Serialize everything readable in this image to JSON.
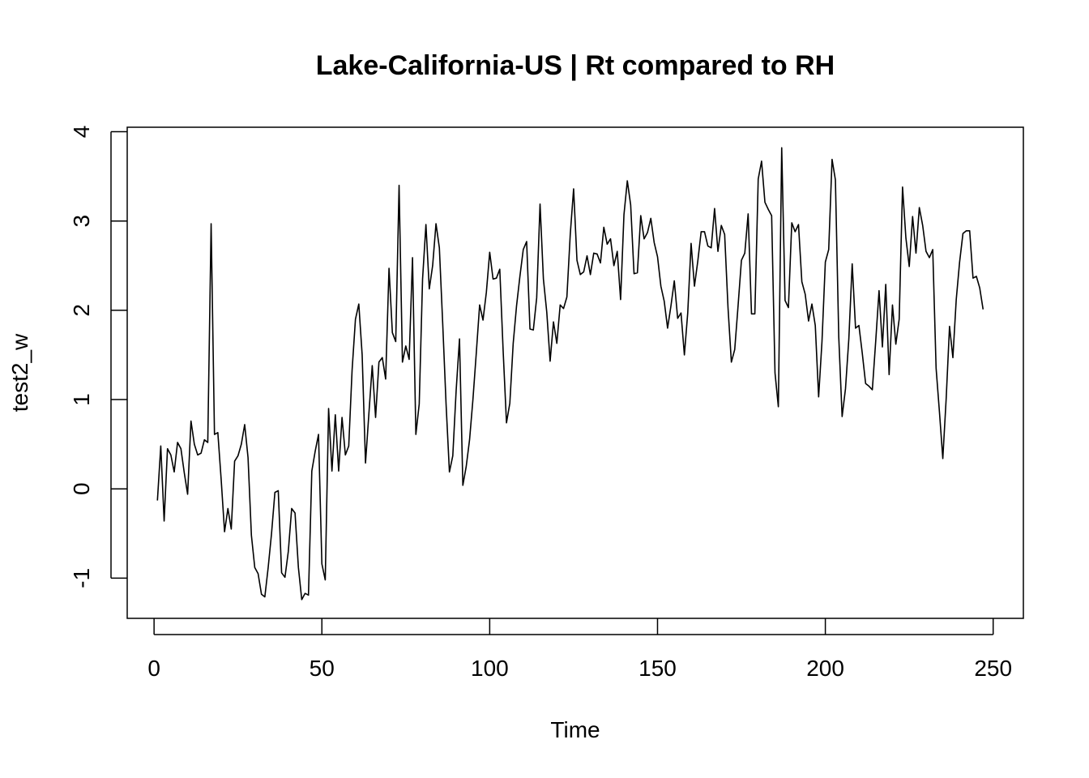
{
  "chart_data": {
    "type": "line",
    "title": "Lake-California-US | Rt compared to RH",
    "xlabel": "Time",
    "ylabel": "test2_w",
    "xlim": [
      -8,
      259
    ],
    "ylim": [
      -1.45,
      4.05
    ],
    "x_ticks": [
      0,
      50,
      100,
      150,
      200,
      250
    ],
    "y_ticks": [
      -1,
      0,
      1,
      2,
      3,
      4
    ],
    "grid": false,
    "legend": "none",
    "line_color": "#000000",
    "x_start": 1,
    "series": [
      {
        "values": [
          -0.13,
          0.48,
          -0.36,
          0.45,
          0.38,
          0.19,
          0.52,
          0.45,
          0.18,
          -0.06,
          0.76,
          0.5,
          0.38,
          0.4,
          0.55,
          0.52,
          2.97,
          0.61,
          0.63,
          0.1,
          -0.48,
          -0.22,
          -0.45,
          0.31,
          0.37,
          0.5,
          0.72,
          0.35,
          -0.52,
          -0.88,
          -0.95,
          -1.18,
          -1.21,
          -0.88,
          -0.5,
          -0.04,
          -0.02,
          -0.94,
          -0.99,
          -0.7,
          -0.22,
          -0.27,
          -0.88,
          -1.24,
          -1.17,
          -1.19,
          0.2,
          0.42,
          0.61,
          -0.84,
          -1.02,
          0.9,
          0.2,
          0.83,
          0.2,
          0.8,
          0.38,
          0.48,
          1.33,
          1.9,
          2.07,
          1.5,
          0.29,
          0.84,
          1.38,
          0.8,
          1.42,
          1.47,
          1.23,
          2.47,
          1.75,
          1.65,
          3.4,
          1.42,
          1.6,
          1.45,
          2.59,
          0.61,
          0.95,
          2.35,
          2.96,
          2.24,
          2.5,
          2.97,
          2.7,
          1.85,
          0.95,
          0.19,
          0.37,
          1.1,
          1.68,
          0.04,
          0.25,
          0.55,
          1.0,
          1.52,
          2.06,
          1.89,
          2.2,
          2.65,
          2.35,
          2.36,
          2.46,
          1.55,
          0.74,
          0.96,
          1.63,
          2.05,
          2.38,
          2.68,
          2.77,
          1.79,
          1.78,
          2.14,
          3.19,
          2.35,
          1.98,
          1.43,
          1.87,
          1.63,
          2.06,
          2.02,
          2.15,
          2.85,
          3.36,
          2.56,
          2.4,
          2.43,
          2.61,
          2.4,
          2.64,
          2.63,
          2.53,
          2.93,
          2.74,
          2.8,
          2.5,
          2.66,
          2.12,
          3.07,
          3.45,
          3.18,
          2.41,
          2.42,
          3.06,
          2.8,
          2.87,
          3.03,
          2.76,
          2.6,
          2.27,
          2.1,
          1.8,
          2.05,
          2.33,
          1.91,
          1.97,
          1.5,
          1.97,
          2.75,
          2.27,
          2.55,
          2.88,
          2.88,
          2.72,
          2.7,
          3.14,
          2.66,
          2.95,
          2.85,
          2.03,
          1.42,
          1.56,
          2.05,
          2.56,
          2.64,
          3.08,
          1.96,
          1.96,
          3.47,
          3.67,
          3.21,
          3.13,
          3.06,
          1.3,
          0.92,
          3.82,
          2.11,
          2.03,
          2.98,
          2.88,
          2.96,
          2.32,
          2.18,
          1.88,
          2.07,
          1.83,
          1.03,
          1.65,
          2.54,
          2.68,
          3.69,
          3.46,
          1.7,
          0.81,
          1.12,
          1.68,
          2.52,
          1.8,
          1.83,
          1.52,
          1.18,
          1.15,
          1.11,
          1.65,
          2.22,
          1.59,
          2.29,
          1.28,
          2.06,
          1.62,
          1.9,
          3.38,
          2.81,
          2.49,
          3.05,
          2.64,
          3.15,
          2.95,
          2.66,
          2.59,
          2.68,
          1.35,
          0.86,
          0.34,
          1.01,
          1.82,
          1.47,
          2.12,
          2.54,
          2.86,
          2.89,
          2.89,
          2.36,
          2.38,
          2.25,
          2.01
        ]
      }
    ]
  }
}
